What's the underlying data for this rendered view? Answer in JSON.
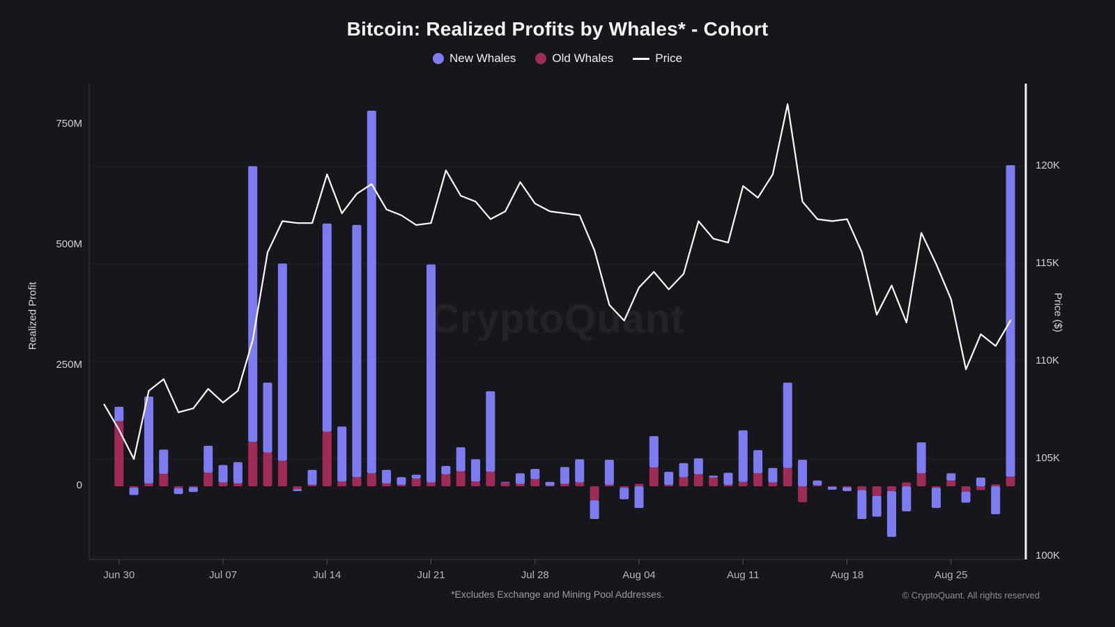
{
  "title": "Bitcoin: Realized Profits by Whales* - Cohort",
  "legend": {
    "items": [
      {
        "label": "New Whales",
        "color": "#7c7cf0",
        "marker": "dot"
      },
      {
        "label": "Old Whales",
        "color": "#9f2b58",
        "marker": "dot"
      },
      {
        "label": "Price",
        "color": "#ffffff",
        "marker": "line"
      }
    ]
  },
  "watermark": "CryptoQuant",
  "footnote": "*Excludes Exchange and Mining Pool Addresses.",
  "copyright": "© CryptoQuant. All rights reserved",
  "colors": {
    "background": "#17171b",
    "new_whales_bar": "#7c7cf0",
    "old_whales_bar": "#9f2b58",
    "price_line": "#ffffff",
    "gridline": "#232329",
    "axis_line": "#3b3b42",
    "right_axis_line": "#f2f2f2",
    "tick_text": "#cfcfd4"
  },
  "axes": {
    "left": {
      "title": "Realized Profit",
      "tick_labels": [
        "0",
        "250M",
        "500M",
        "750M"
      ],
      "tick_values_M": [
        0,
        250,
        500,
        750
      ],
      "range_M": [
        -152,
        835
      ]
    },
    "right": {
      "title": "Price ($)",
      "tick_labels": [
        "100K",
        "105K",
        "110K",
        "115K",
        "120K"
      ],
      "tick_values_K": [
        100,
        105,
        110,
        115,
        120
      ],
      "range_K": [
        99.9,
        124.2
      ]
    },
    "x": {
      "tick_labels": [
        "Jun 30",
        "Jul 07",
        "Jul 14",
        "Jul 21",
        "Jul 28",
        "Aug 04",
        "Aug 11",
        "Aug 18",
        "Aug 25"
      ],
      "tick_day_indices": [
        1,
        8,
        15,
        22,
        29,
        36,
        43,
        50,
        57
      ]
    }
  },
  "chart_data": {
    "type": "bar+line",
    "bar_unit": "USD millions (realized profit)",
    "line_unit": "USD thousands (BTC price)",
    "stacked_bars": true,
    "legend_position": "top-center",
    "grid": "faint-horizontal",
    "categories": [
      "Jun 29",
      "Jun 30",
      "Jul 01",
      "Jul 02",
      "Jul 03",
      "Jul 04",
      "Jul 05",
      "Jul 06",
      "Jul 07",
      "Jul 08",
      "Jul 09",
      "Jul 10",
      "Jul 11",
      "Jul 12",
      "Jul 13",
      "Jul 14",
      "Jul 15",
      "Jul 16",
      "Jul 17",
      "Jul 18",
      "Jul 19",
      "Jul 20",
      "Jul 21",
      "Jul 22",
      "Jul 23",
      "Jul 24",
      "Jul 25",
      "Jul 26",
      "Jul 27",
      "Jul 28",
      "Jul 29",
      "Jul 30",
      "Jul 31",
      "Aug 01",
      "Aug 02",
      "Aug 03",
      "Aug 04",
      "Aug 05",
      "Aug 06",
      "Aug 07",
      "Aug 08",
      "Aug 09",
      "Aug 10",
      "Aug 11",
      "Aug 12",
      "Aug 13",
      "Aug 14",
      "Aug 15",
      "Aug 16",
      "Aug 17",
      "Aug 18",
      "Aug 19",
      "Aug 20",
      "Aug 21",
      "Aug 22",
      "Aug 23",
      "Aug 24",
      "Aug 25",
      "Aug 26",
      "Aug 27",
      "Aug 28",
      "Aug 29"
    ],
    "series": [
      {
        "name": "New Whales",
        "type": "bar",
        "axis": "left",
        "color": "#7c7cf0",
        "values": [
          0,
          30,
          -15,
          180,
          50,
          -12,
          -10,
          56,
          36,
          44,
          572,
          145,
          409,
          -4,
          31,
          432,
          114,
          523,
          752,
          28,
          16,
          8,
          452,
          17,
          50,
          46,
          167,
          1,
          22,
          21,
          8,
          35,
          48,
          -39,
          52,
          -24,
          -45,
          65,
          27,
          29,
          33,
          4,
          25,
          107,
          48,
          30,
          177,
          55,
          10,
          -6,
          -8,
          -60,
          -43,
          -95,
          -52,
          64,
          -42,
          15,
          -23,
          18,
          -58,
          646
        ]
      },
      {
        "name": "Old Whales",
        "type": "bar",
        "axis": "left",
        "color": "#9f2b58",
        "values": [
          0,
          135,
          -3,
          6,
          26,
          -4,
          -2,
          28,
          8,
          6,
          92,
          70,
          53,
          -6,
          3,
          113,
          10,
          19,
          27,
          6,
          3,
          16,
          8,
          25,
          31,
          10,
          30,
          8,
          5,
          15,
          1,
          5,
          8,
          -29,
          3,
          -3,
          5,
          39,
          3,
          19,
          25,
          18,
          3,
          9,
          27,
          8,
          38,
          -33,
          2,
          -1,
          -2,
          -8,
          -20,
          -10,
          8,
          27,
          -3,
          12,
          -11,
          -8,
          4,
          20
        ]
      },
      {
        "name": "Price",
        "type": "line",
        "axis": "right",
        "color": "#ffffff",
        "values": [
          107.8,
          106.5,
          105.0,
          108.5,
          109.1,
          107.4,
          107.6,
          108.6,
          107.9,
          108.5,
          111.1,
          115.6,
          117.2,
          117.1,
          117.1,
          119.6,
          117.6,
          118.6,
          119.1,
          117.8,
          117.5,
          117.0,
          117.1,
          119.8,
          118.5,
          118.2,
          117.3,
          117.7,
          119.2,
          118.1,
          117.7,
          117.6,
          117.5,
          115.7,
          112.9,
          112.1,
          113.8,
          114.6,
          113.7,
          114.5,
          117.2,
          116.3,
          116.1,
          119.0,
          118.4,
          119.6,
          123.2,
          118.2,
          117.3,
          117.2,
          117.3,
          115.6,
          112.4,
          113.9,
          112.0,
          116.6,
          115.0,
          113.2,
          109.6,
          111.4,
          110.8,
          112.1
        ]
      }
    ]
  }
}
